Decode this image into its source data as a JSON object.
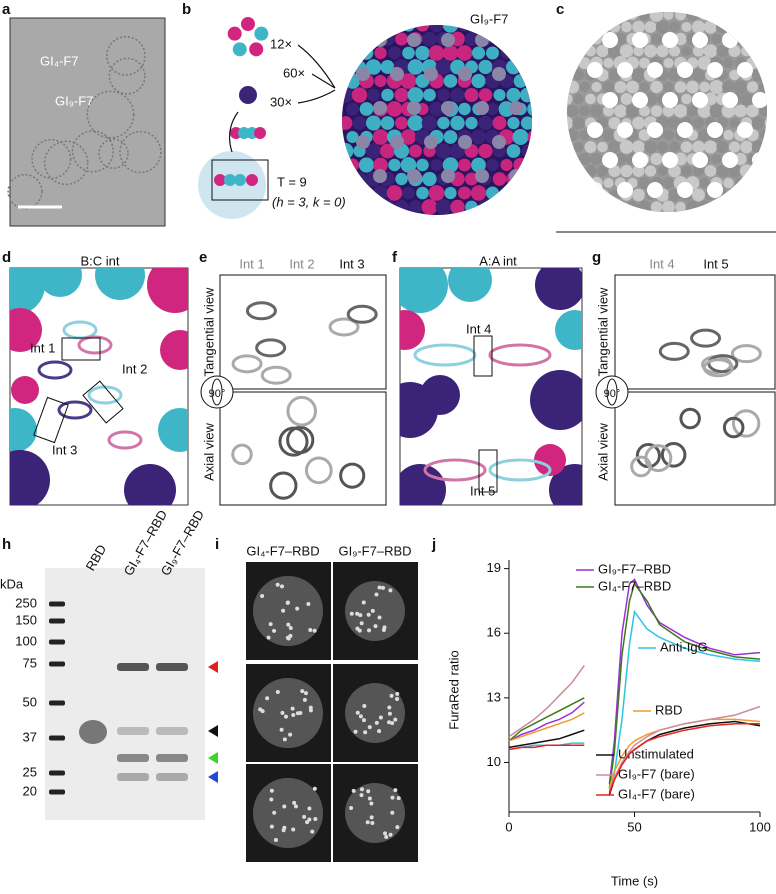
{
  "panel_labels": [
    "a",
    "b",
    "c",
    "d",
    "e",
    "f",
    "g",
    "h",
    "i",
    "j"
  ],
  "panel_a": {
    "labels": [
      "GI₄-F7",
      "GI₉-F7"
    ]
  },
  "panel_b": {
    "assembly": "GI₉-F7",
    "counts": [
      "12×",
      "60×",
      "30×"
    ],
    "triangulation": "T = 9",
    "indices": "(h = 3, k = 0)"
  },
  "panel_d": {
    "title": "B:C int",
    "interfaces": [
      "Int 1",
      "Int 2",
      "Int 3"
    ]
  },
  "panel_e": {
    "interfaces": [
      "Int 1",
      "Int 2",
      "Int 3"
    ],
    "views": [
      "Tangential view",
      "Axial view"
    ],
    "rotation": "90°"
  },
  "panel_f": {
    "title": "A:A int",
    "interfaces": [
      "Int 4",
      "Int 5"
    ]
  },
  "panel_g": {
    "interfaces": [
      "Int 4",
      "Int 5"
    ],
    "views": [
      "Tangential view",
      "Axial view"
    ],
    "rotation": "90°"
  },
  "panel_h": {
    "lanes": [
      "RBD",
      "GI₄-F7–RBD",
      "GI₉-F7–RBD"
    ],
    "unit": "kDa",
    "ladder": [
      "250",
      "150",
      "100",
      "75",
      "50",
      "37",
      "25",
      "20"
    ]
  },
  "panel_i": {
    "columns": [
      "GI₄-F7–RBD",
      "GI₉-F7–RBD"
    ]
  },
  "chart_data": {
    "type": "line",
    "x_label": "Time (s)",
    "y_label": "FuraRed ratio",
    "x": [
      0,
      5,
      10,
      15,
      20,
      25,
      30,
      35,
      40,
      42,
      45,
      48,
      50,
      55,
      60,
      70,
      80,
      90,
      100
    ],
    "series": [
      {
        "name": "GI₉-F7–RBD",
        "color": "#9b30d9",
        "values": [
          11.0,
          11.3,
          11.5,
          11.8,
          12.0,
          12.3,
          12.8,
          null,
          9.0,
          11.0,
          16.0,
          18.3,
          18.5,
          17.3,
          16.5,
          15.8,
          15.3,
          15.0,
          15.1
        ]
      },
      {
        "name": "GI₄-F7–RBD",
        "color": "#3f7a1a",
        "values": [
          11.0,
          11.5,
          11.8,
          12.1,
          12.4,
          12.7,
          13.0,
          null,
          8.8,
          10.5,
          15.0,
          17.5,
          18.3,
          17.5,
          16.4,
          15.6,
          15.2,
          14.9,
          14.8
        ]
      },
      {
        "name": "Anti-IgG",
        "color": "#2ec4e6",
        "values": [
          10.6,
          10.7,
          10.8,
          10.8,
          10.8,
          10.9,
          10.9,
          null,
          8.7,
          9.5,
          12.0,
          15.5,
          17.0,
          16.2,
          15.8,
          15.3,
          15.0,
          14.8,
          14.7
        ]
      },
      {
        "name": "RBD",
        "color": "#f39a2c",
        "values": [
          11.0,
          11.2,
          11.4,
          11.6,
          11.8,
          12.0,
          12.3,
          null,
          8.8,
          9.6,
          10.3,
          10.8,
          11.0,
          11.3,
          11.5,
          11.8,
          12.0,
          12.0,
          11.9
        ]
      },
      {
        "name": "Unstimulated",
        "color": "#111111",
        "values": [
          10.7,
          10.8,
          10.9,
          11.0,
          11.1,
          11.3,
          11.5,
          null,
          8.5,
          9.2,
          9.9,
          10.4,
          10.6,
          11.0,
          11.3,
          11.6,
          11.8,
          11.9,
          11.7
        ]
      },
      {
        "name": "GI₉-F7 (bare)",
        "color": "#d08a9a",
        "values": [
          11.2,
          11.6,
          12.0,
          12.5,
          13.1,
          13.7,
          14.5,
          null,
          8.6,
          9.3,
          10.0,
          10.5,
          10.8,
          11.2,
          11.5,
          11.8,
          12.0,
          12.2,
          12.6
        ]
      },
      {
        "name": "GI₄-F7 (bare)",
        "color": "#e8231f",
        "values": [
          10.6,
          10.7,
          10.7,
          10.8,
          10.8,
          10.8,
          10.8,
          null,
          8.6,
          9.2,
          9.9,
          10.4,
          10.6,
          11.0,
          11.2,
          11.5,
          11.7,
          11.8,
          11.8
        ]
      }
    ],
    "xlim": [
      0,
      100
    ],
    "ylim": [
      7.7,
      19.4
    ],
    "xticks": [
      0,
      50,
      100
    ],
    "yticks": [
      10,
      13,
      16,
      19
    ]
  }
}
